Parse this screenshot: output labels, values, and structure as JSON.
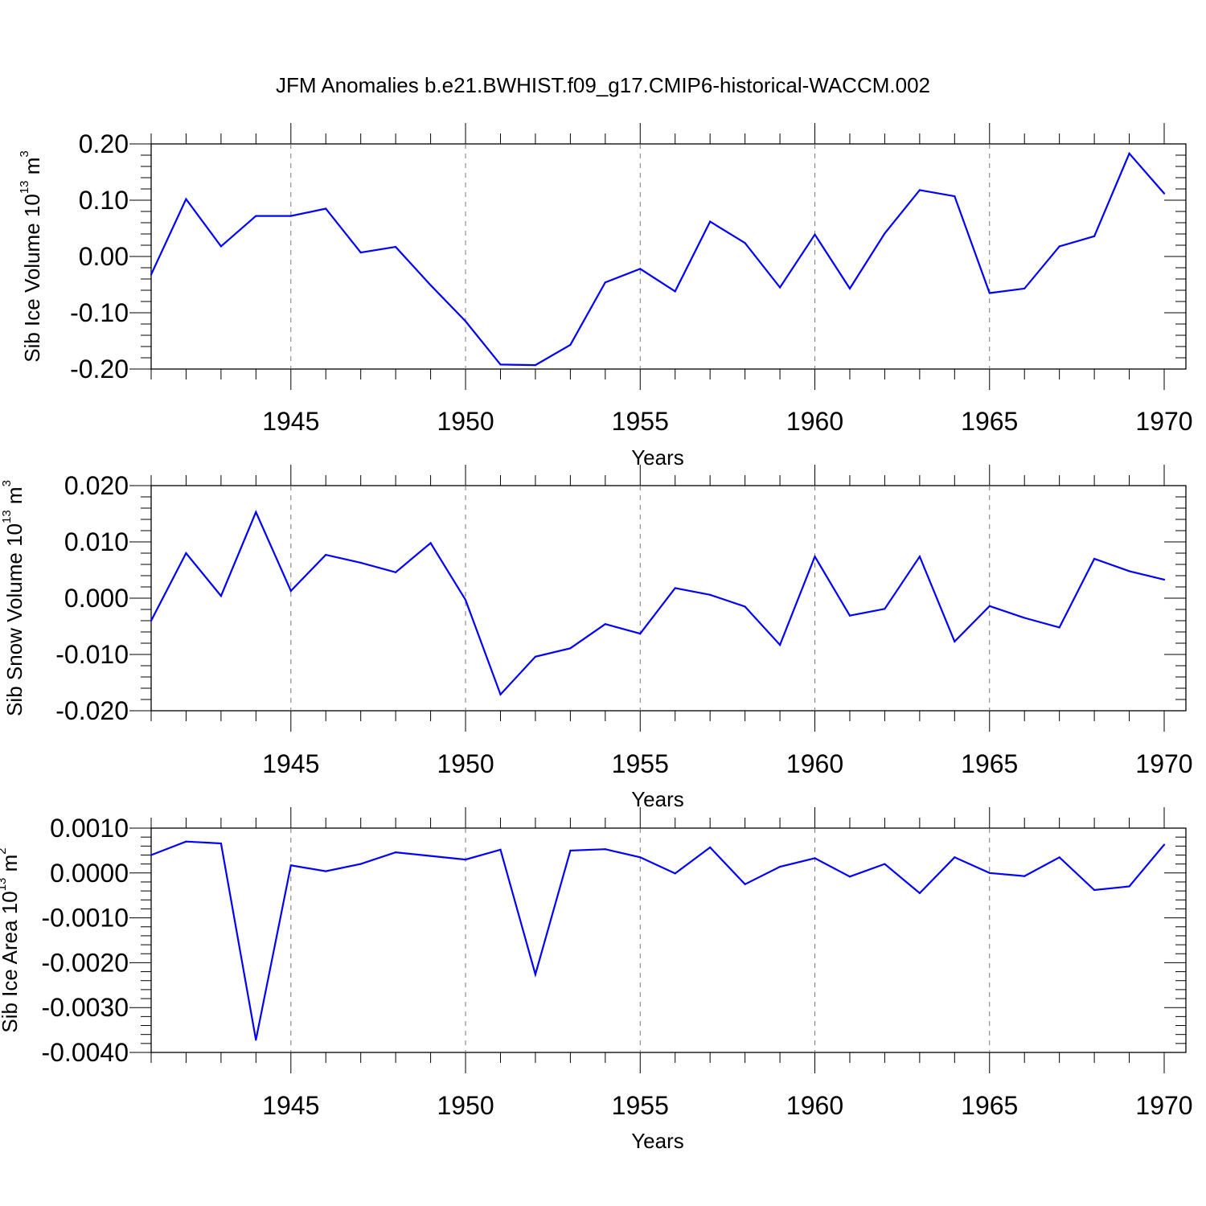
{
  "title": "JFM Anomalies b.e21.BWHIST.f09_g17.CMIP6-historical-WACCM.002",
  "colors": {
    "line": "#0000ff",
    "axis": "#000000",
    "grid": "#7a7a7a"
  },
  "chart_data": [
    {
      "type": "line",
      "id": "ice-volume",
      "ylabel": {
        "text": "Sib Ice Volume 10",
        "exp": "13",
        "unit": " m",
        "unit_exp": "3"
      },
      "xlabel": "Years",
      "xlim": [
        1941,
        1970
      ],
      "ylim": [
        -0.2,
        0.2
      ],
      "yticks": [
        -0.2,
        -0.1,
        0.0,
        0.1,
        0.2
      ],
      "ytick_labels": [
        "-0.20",
        "-0.10",
        "0.00",
        "0.10",
        "0.20"
      ],
      "xticks": [
        1945,
        1950,
        1955,
        1960,
        1965,
        1970
      ],
      "xtick_labels": [
        "1945",
        "1950",
        "1955",
        "1960",
        "1965",
        "1970"
      ],
      "x": [
        1941,
        1942,
        1943,
        1944,
        1945,
        1946,
        1947,
        1948,
        1949,
        1950,
        1951,
        1952,
        1953,
        1954,
        1955,
        1956,
        1957,
        1958,
        1959,
        1960,
        1961,
        1962,
        1963,
        1964,
        1965,
        1966,
        1967,
        1968,
        1969,
        1970
      ],
      "values": [
        -0.032,
        0.102,
        0.018,
        0.072,
        0.072,
        0.085,
        0.007,
        0.017,
        -0.051,
        -0.115,
        -0.192,
        -0.193,
        -0.157,
        -0.046,
        -0.022,
        -0.062,
        0.062,
        0.024,
        -0.055,
        0.039,
        -0.057,
        0.041,
        0.118,
        0.107,
        -0.065,
        -0.057,
        0.018,
        0.036,
        0.183,
        0.112
      ]
    },
    {
      "type": "line",
      "id": "snow-volume",
      "ylabel": {
        "text": "Sib Snow Volume 10",
        "exp": "13",
        "unit": " m",
        "unit_exp": "3"
      },
      "xlabel": "Years",
      "xlim": [
        1941,
        1970
      ],
      "ylim": [
        -0.02,
        0.02
      ],
      "yticks": [
        -0.02,
        -0.01,
        0.0,
        0.01,
        0.02
      ],
      "ytick_labels": [
        "-0.020",
        "-0.010",
        "0.000",
        "0.010",
        "0.020"
      ],
      "xticks": [
        1945,
        1950,
        1955,
        1960,
        1965,
        1970
      ],
      "xtick_labels": [
        "1945",
        "1950",
        "1955",
        "1960",
        "1965",
        "1970"
      ],
      "x": [
        1941,
        1942,
        1943,
        1944,
        1945,
        1946,
        1947,
        1948,
        1949,
        1950,
        1951,
        1952,
        1953,
        1954,
        1955,
        1956,
        1957,
        1958,
        1959,
        1960,
        1961,
        1962,
        1963,
        1964,
        1965,
        1966,
        1967,
        1968,
        1969,
        1970
      ],
      "values": [
        -0.004,
        0.008,
        0.0004,
        0.0153,
        0.0013,
        0.0077,
        0.0063,
        0.0046,
        0.0098,
        -0.0003,
        -0.0171,
        -0.0104,
        -0.0089,
        -0.0046,
        -0.0063,
        0.0018,
        0.0006,
        -0.0015,
        -0.0083,
        0.0074,
        -0.0031,
        -0.0019,
        0.0074,
        -0.0077,
        -0.0014,
        -0.0035,
        -0.0052,
        0.007,
        0.0048,
        0.0033
      ]
    },
    {
      "type": "line",
      "id": "ice-area",
      "ylabel": {
        "text": "Sib Ice Area 10",
        "exp": "13",
        "unit": " m",
        "unit_exp": "2"
      },
      "xlabel": "Years",
      "xlim": [
        1941,
        1970
      ],
      "ylim": [
        -0.004,
        0.001
      ],
      "yticks": [
        -0.004,
        -0.003,
        -0.002,
        -0.001,
        0.0,
        0.001
      ],
      "ytick_labels": [
        "-0.0040",
        "-0.0030",
        "-0.0020",
        "-0.0010",
        "0.0000",
        "0.0010"
      ],
      "xticks": [
        1945,
        1950,
        1955,
        1960,
        1965,
        1970
      ],
      "xtick_labels": [
        "1945",
        "1950",
        "1955",
        "1960",
        "1965",
        "1970"
      ],
      "x": [
        1941,
        1942,
        1943,
        1944,
        1945,
        1946,
        1947,
        1948,
        1949,
        1950,
        1951,
        1952,
        1953,
        1954,
        1955,
        1956,
        1957,
        1958,
        1959,
        1960,
        1961,
        1962,
        1963,
        1964,
        1965,
        1966,
        1967,
        1968,
        1969,
        1970
      ],
      "values": [
        0.0004,
        0.0007,
        0.00066,
        -0.00372,
        0.00017,
        4e-05,
        0.0002,
        0.00046,
        0.00038,
        0.0003,
        0.00052,
        -0.00226,
        0.0005,
        0.00053,
        0.00035,
        -1e-05,
        0.00057,
        -0.00025,
        0.00014,
        0.00033,
        -8e-05,
        0.0002,
        -0.00045,
        0.00035,
        0.0,
        -7e-05,
        0.00035,
        -0.00038,
        -0.0003,
        0.00063
      ]
    }
  ]
}
